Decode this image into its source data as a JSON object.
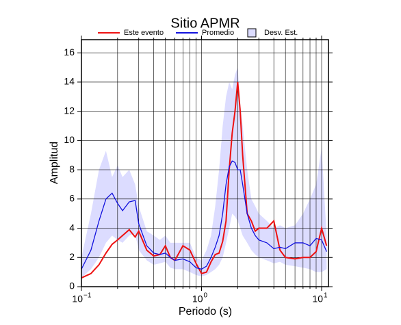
{
  "chart_data": {
    "type": "line",
    "title": "Sitio APMR",
    "xlabel": "Periodo (s)",
    "ylabel": "Amplitud",
    "xscale": "log",
    "grid": true,
    "legend": "top",
    "xlim": [
      0.1,
      11.4
    ],
    "ylim": [
      0,
      16.9
    ],
    "xticks": [
      {
        "value": 0.1,
        "label": "10",
        "exponent": "−1"
      },
      {
        "value": 1,
        "label": "10",
        "exponent": "0"
      },
      {
        "value": 10,
        "label": "10",
        "exponent": "1"
      }
    ],
    "minor_xticks": [
      0.2,
      0.3,
      0.4,
      0.5,
      0.6,
      0.7,
      0.8,
      0.9,
      2,
      3,
      4,
      5,
      6,
      7,
      8,
      9
    ],
    "yticks": [
      0,
      2,
      4,
      6,
      8,
      10,
      12,
      14,
      16
    ],
    "x": [
      0.1,
      0.12,
      0.14,
      0.16,
      0.18,
      0.2,
      0.22,
      0.25,
      0.28,
      0.3,
      0.35,
      0.4,
      0.45,
      0.5,
      0.55,
      0.6,
      0.7,
      0.8,
      0.9,
      1.0,
      1.1,
      1.2,
      1.3,
      1.4,
      1.5,
      1.6,
      1.7,
      1.8,
      1.9,
      2.0,
      2.1,
      2.2,
      2.4,
      2.6,
      2.8,
      3.0,
      3.5,
      4.0,
      4.5,
      5,
      6,
      7,
      8,
      9,
      10,
      11
    ],
    "band": {
      "name": "Desv. Est.",
      "color": "#dcdcff",
      "edge": "#000000",
      "upper": [
        2.0,
        5.0,
        8.0,
        9.3,
        7.5,
        8.3,
        7.5,
        8.0,
        7.0,
        5.5,
        3.8,
        3.5,
        3.2,
        3.5,
        3.0,
        3.0,
        3.0,
        3.0,
        2.0,
        1.8,
        2.5,
        3.5,
        5.5,
        8.0,
        11.0,
        13.0,
        14.0,
        13.5,
        14.5,
        15.0,
        12.5,
        11.0,
        8.0,
        6.0,
        5.5,
        5.0,
        4.5,
        4.0,
        4.2,
        4.0,
        4.2,
        5.0,
        6.0,
        7.0,
        9.5,
        3.5
      ],
      "lower": [
        0.6,
        1.2,
        2.0,
        3.0,
        3.5,
        3.2,
        3.0,
        3.5,
        3.6,
        2.5,
        1.8,
        1.5,
        1.6,
        1.7,
        1.3,
        1.2,
        1.2,
        1.0,
        0.8,
        0.7,
        0.8,
        1.0,
        1.2,
        1.5,
        2.0,
        3.0,
        4.0,
        5.0,
        4.8,
        4.5,
        4.0,
        3.5,
        3.0,
        2.5,
        2.2,
        2.0,
        1.8,
        1.6,
        1.7,
        1.5,
        1.4,
        1.3,
        1.2,
        1.0,
        1.0,
        1.2
      ]
    },
    "series": [
      {
        "name": "Este evento",
        "color": "#ee1111",
        "values": [
          0.6,
          0.9,
          1.5,
          2.3,
          2.9,
          3.2,
          3.5,
          3.9,
          3.4,
          3.8,
          2.5,
          2.1,
          2.2,
          2.8,
          2.0,
          1.8,
          2.8,
          2.5,
          1.6,
          0.9,
          1.0,
          1.7,
          2.2,
          2.3,
          3.1,
          4.5,
          8.0,
          10.5,
          12.0,
          14.0,
          12.0,
          9.0,
          5.0,
          4.5,
          3.8,
          4.0,
          4.0,
          4.5,
          2.5,
          2.0,
          1.9,
          2.0,
          2.0,
          2.4,
          4.0,
          2.8
        ]
      },
      {
        "name": "Promedio",
        "color": "#1111dd",
        "values": [
          1.2,
          2.5,
          4.5,
          6.0,
          6.4,
          5.7,
          5.2,
          5.8,
          5.9,
          4.3,
          2.8,
          2.3,
          2.2,
          2.3,
          2.0,
          1.8,
          1.9,
          1.7,
          1.3,
          1.2,
          1.4,
          2.0,
          2.7,
          3.5,
          5.0,
          7.0,
          8.2,
          8.6,
          8.5,
          8.0,
          8.0,
          7.0,
          5.0,
          4.0,
          3.5,
          3.2,
          3.0,
          2.6,
          2.7,
          2.6,
          3.0,
          3.0,
          2.8,
          3.3,
          3.2,
          2.4
        ]
      }
    ]
  }
}
